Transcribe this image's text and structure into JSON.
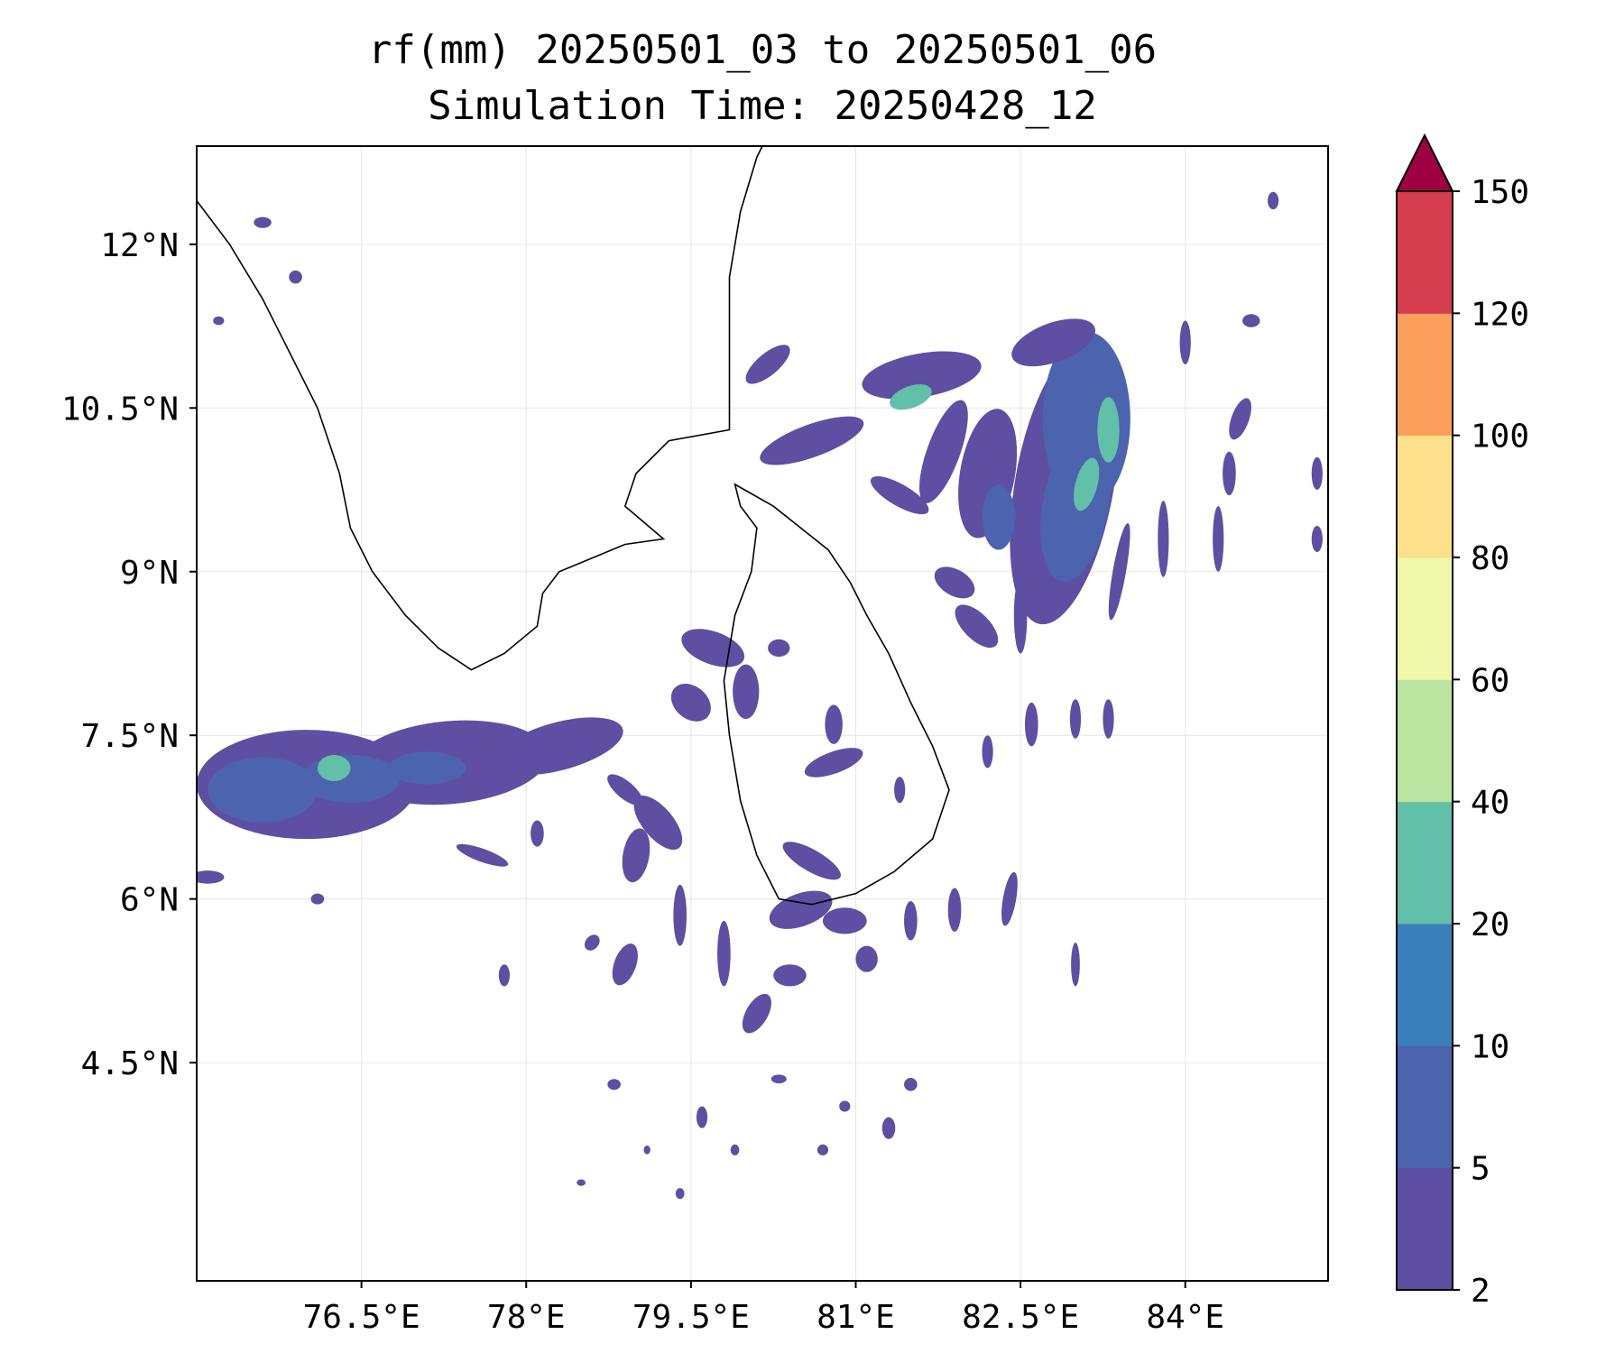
{
  "title": "rf(mm) 20250501_03 to 20250501_06",
  "subtitle": "Simulation Time: 20250428_12",
  "map": {
    "extent": {
      "lon_min": 75.0,
      "lon_max": 85.3,
      "lat_min": 2.5,
      "lat_max": 12.9
    },
    "lon_ticks": [
      {
        "value": 76.5,
        "label": "76.5°E"
      },
      {
        "value": 78.0,
        "label": "78°E"
      },
      {
        "value": 79.5,
        "label": "79.5°E"
      },
      {
        "value": 81.0,
        "label": "81°E"
      },
      {
        "value": 82.5,
        "label": "82.5°E"
      },
      {
        "value": 84.0,
        "label": "84°E"
      }
    ],
    "lat_ticks": [
      {
        "value": 12.0,
        "label": "12°N"
      },
      {
        "value": 10.5,
        "label": "10.5°N"
      },
      {
        "value": 9.0,
        "label": "9°N"
      },
      {
        "value": 7.5,
        "label": "7.5°N"
      },
      {
        "value": 6.0,
        "label": "6°N"
      },
      {
        "value": 4.5,
        "label": "4.5°N"
      }
    ],
    "gridlines": true,
    "coastline_color": "#000000",
    "india_coast": [
      [
        75.0,
        12.4
      ],
      [
        75.3,
        12.0
      ],
      [
        75.6,
        11.5
      ],
      [
        75.8,
        11.1
      ],
      [
        76.1,
        10.5
      ],
      [
        76.3,
        9.9
      ],
      [
        76.4,
        9.4
      ],
      [
        76.6,
        9.0
      ],
      [
        76.9,
        8.6
      ],
      [
        77.2,
        8.3
      ],
      [
        77.5,
        8.1
      ],
      [
        77.8,
        8.25
      ],
      [
        78.1,
        8.5
      ],
      [
        78.15,
        8.8
      ],
      [
        78.3,
        9.0
      ],
      [
        78.9,
        9.25
      ],
      [
        79.25,
        9.3
      ],
      [
        78.9,
        9.6
      ],
      [
        79.0,
        9.9
      ],
      [
        79.3,
        10.2
      ],
      [
        79.85,
        10.3
      ],
      [
        79.85,
        10.9
      ],
      [
        79.85,
        11.7
      ],
      [
        79.95,
        12.3
      ],
      [
        80.1,
        12.8
      ],
      [
        80.15,
        12.9
      ]
    ],
    "srilanka_coast": [
      [
        79.9,
        9.8
      ],
      [
        80.25,
        9.6
      ],
      [
        80.5,
        9.4
      ],
      [
        80.75,
        9.2
      ],
      [
        80.95,
        8.9
      ],
      [
        81.1,
        8.6
      ],
      [
        81.3,
        8.25
      ],
      [
        81.5,
        7.8
      ],
      [
        81.7,
        7.4
      ],
      [
        81.85,
        7.0
      ],
      [
        81.7,
        6.55
      ],
      [
        81.35,
        6.25
      ],
      [
        81.0,
        6.05
      ],
      [
        80.6,
        5.95
      ],
      [
        80.3,
        6.0
      ],
      [
        80.1,
        6.4
      ],
      [
        79.95,
        6.9
      ],
      [
        79.85,
        7.5
      ],
      [
        79.8,
        8.0
      ],
      [
        79.9,
        8.6
      ],
      [
        80.05,
        9.0
      ],
      [
        80.1,
        9.4
      ],
      [
        79.95,
        9.6
      ],
      [
        79.9,
        9.8
      ]
    ]
  },
  "colorbar": {
    "levels": [
      2,
      5,
      10,
      20,
      40,
      60,
      80,
      100,
      120,
      150
    ],
    "tick_labels": [
      "2",
      "5",
      "10",
      "20",
      "40",
      "60",
      "80",
      "100",
      "120",
      "150"
    ],
    "colors": [
      "#5e4fa2",
      "#4c63ad",
      "#3a7fbb",
      "#62bfa8",
      "#bce4a1",
      "#eff8aa",
      "#fde08b",
      "#fba05c",
      "#d53e4f"
    ],
    "extend_color": "#9e0142",
    "extend": "max"
  },
  "rain_blobs": [
    {
      "lon": 76.0,
      "lat": 7.05,
      "rx": 1.0,
      "ry": 0.5,
      "rot": 0,
      "level": 0
    },
    {
      "lon": 77.3,
      "lat": 7.25,
      "rx": 0.9,
      "ry": 0.38,
      "rot": -5,
      "level": 0
    },
    {
      "lon": 78.3,
      "lat": 7.4,
      "rx": 0.6,
      "ry": 0.22,
      "rot": -15,
      "level": 0
    },
    {
      "lon": 75.6,
      "lat": 7.0,
      "rx": 0.5,
      "ry": 0.3,
      "rot": 0,
      "level": 1
    },
    {
      "lon": 76.4,
      "lat": 7.1,
      "rx": 0.45,
      "ry": 0.22,
      "rot": 0,
      "level": 1
    },
    {
      "lon": 77.1,
      "lat": 7.2,
      "rx": 0.35,
      "ry": 0.15,
      "rot": 0,
      "level": 1
    },
    {
      "lon": 76.25,
      "lat": 7.2,
      "rx": 0.15,
      "ry": 0.12,
      "rot": 0,
      "level": 3
    },
    {
      "lon": 82.9,
      "lat": 9.8,
      "rx": 0.45,
      "ry": 1.3,
      "rot": 10,
      "level": 0
    },
    {
      "lon": 83.1,
      "lat": 10.4,
      "rx": 0.4,
      "ry": 0.8,
      "rot": 0,
      "level": 1
    },
    {
      "lon": 83.0,
      "lat": 9.6,
      "rx": 0.3,
      "ry": 0.7,
      "rot": 10,
      "level": 1
    },
    {
      "lon": 83.3,
      "lat": 10.3,
      "rx": 0.1,
      "ry": 0.3,
      "rot": 0,
      "level": 3
    },
    {
      "lon": 83.1,
      "lat": 9.8,
      "rx": 0.1,
      "ry": 0.25,
      "rot": 15,
      "level": 3
    },
    {
      "lon": 82.8,
      "lat": 11.1,
      "rx": 0.4,
      "ry": 0.18,
      "rot": -20,
      "level": 0
    },
    {
      "lon": 81.6,
      "lat": 10.8,
      "rx": 0.55,
      "ry": 0.2,
      "rot": -10,
      "level": 0
    },
    {
      "lon": 81.5,
      "lat": 10.6,
      "rx": 0.2,
      "ry": 0.1,
      "rot": -20,
      "level": 3
    },
    {
      "lon": 80.6,
      "lat": 10.2,
      "rx": 0.5,
      "ry": 0.15,
      "rot": -20,
      "level": 0
    },
    {
      "lon": 80.2,
      "lat": 10.9,
      "rx": 0.25,
      "ry": 0.1,
      "rot": -40,
      "level": 0
    },
    {
      "lon": 82.2,
      "lat": 9.9,
      "rx": 0.25,
      "ry": 0.6,
      "rot": 10,
      "level": 0
    },
    {
      "lon": 82.3,
      "lat": 9.5,
      "rx": 0.15,
      "ry": 0.3,
      "rot": 0,
      "level": 1
    },
    {
      "lon": 81.8,
      "lat": 10.1,
      "rx": 0.15,
      "ry": 0.5,
      "rot": 20,
      "level": 0
    },
    {
      "lon": 81.4,
      "lat": 9.7,
      "rx": 0.3,
      "ry": 0.1,
      "rot": 30,
      "level": 0
    },
    {
      "lon": 82.1,
      "lat": 8.5,
      "rx": 0.25,
      "ry": 0.12,
      "rot": 45,
      "level": 0
    },
    {
      "lon": 81.9,
      "lat": 8.9,
      "rx": 0.2,
      "ry": 0.12,
      "rot": 30,
      "level": 0
    },
    {
      "lon": 82.5,
      "lat": 8.6,
      "rx": 0.06,
      "ry": 0.35,
      "rot": 0,
      "level": 0
    },
    {
      "lon": 83.4,
      "lat": 9.0,
      "rx": 0.06,
      "ry": 0.45,
      "rot": 10,
      "level": 0
    },
    {
      "lon": 83.8,
      "lat": 9.3,
      "rx": 0.05,
      "ry": 0.35,
      "rot": 0,
      "level": 0
    },
    {
      "lon": 84.3,
      "lat": 9.3,
      "rx": 0.05,
      "ry": 0.3,
      "rot": 0,
      "level": 0
    },
    {
      "lon": 84.5,
      "lat": 10.4,
      "rx": 0.08,
      "ry": 0.2,
      "rot": 20,
      "level": 0
    },
    {
      "lon": 84.4,
      "lat": 9.9,
      "rx": 0.06,
      "ry": 0.2,
      "rot": 0,
      "level": 0
    },
    {
      "lon": 84.6,
      "lat": 11.3,
      "rx": 0.08,
      "ry": 0.06,
      "rot": 0,
      "level": 0
    },
    {
      "lon": 84.0,
      "lat": 11.1,
      "rx": 0.05,
      "ry": 0.2,
      "rot": 0,
      "level": 0
    },
    {
      "lon": 85.2,
      "lat": 9.9,
      "rx": 0.05,
      "ry": 0.15,
      "rot": 0,
      "level": 0
    },
    {
      "lon": 85.2,
      "lat": 9.3,
      "rx": 0.05,
      "ry": 0.12,
      "rot": 0,
      "level": 0
    },
    {
      "lon": 84.8,
      "lat": 12.4,
      "rx": 0.05,
      "ry": 0.08,
      "rot": 0,
      "level": 0
    },
    {
      "lon": 82.6,
      "lat": 7.6,
      "rx": 0.06,
      "ry": 0.2,
      "rot": 0,
      "level": 0
    },
    {
      "lon": 83.0,
      "lat": 7.65,
      "rx": 0.05,
      "ry": 0.18,
      "rot": 0,
      "level": 0
    },
    {
      "lon": 83.3,
      "lat": 7.65,
      "rx": 0.05,
      "ry": 0.18,
      "rot": 0,
      "level": 0
    },
    {
      "lon": 82.2,
      "lat": 7.35,
      "rx": 0.05,
      "ry": 0.15,
      "rot": 0,
      "level": 0
    },
    {
      "lon": 81.4,
      "lat": 7.0,
      "rx": 0.05,
      "ry": 0.12,
      "rot": 0,
      "level": 0
    },
    {
      "lon": 80.8,
      "lat": 7.25,
      "rx": 0.28,
      "ry": 0.1,
      "rot": -20,
      "level": 0
    },
    {
      "lon": 80.8,
      "lat": 7.6,
      "rx": 0.08,
      "ry": 0.18,
      "rot": 0,
      "level": 0
    },
    {
      "lon": 80.6,
      "lat": 6.35,
      "rx": 0.3,
      "ry": 0.1,
      "rot": 30,
      "level": 0
    },
    {
      "lon": 80.5,
      "lat": 5.9,
      "rx": 0.3,
      "ry": 0.15,
      "rot": -20,
      "level": 0
    },
    {
      "lon": 80.9,
      "lat": 5.8,
      "rx": 0.2,
      "ry": 0.12,
      "rot": 0,
      "level": 0
    },
    {
      "lon": 79.7,
      "lat": 8.3,
      "rx": 0.3,
      "ry": 0.15,
      "rot": 20,
      "level": 0
    },
    {
      "lon": 79.5,
      "lat": 7.8,
      "rx": 0.2,
      "ry": 0.15,
      "rot": 40,
      "level": 0
    },
    {
      "lon": 79.2,
      "lat": 6.7,
      "rx": 0.3,
      "ry": 0.14,
      "rot": 50,
      "level": 0
    },
    {
      "lon": 78.9,
      "lat": 7.0,
      "rx": 0.2,
      "ry": 0.08,
      "rot": 40,
      "level": 0
    },
    {
      "lon": 79.0,
      "lat": 6.4,
      "rx": 0.12,
      "ry": 0.25,
      "rot": 10,
      "level": 0
    },
    {
      "lon": 79.4,
      "lat": 5.85,
      "rx": 0.06,
      "ry": 0.28,
      "rot": 0,
      "level": 0
    },
    {
      "lon": 79.8,
      "lat": 5.5,
      "rx": 0.06,
      "ry": 0.3,
      "rot": 0,
      "level": 0
    },
    {
      "lon": 80.1,
      "lat": 4.95,
      "rx": 0.1,
      "ry": 0.2,
      "rot": 30,
      "level": 0
    },
    {
      "lon": 78.9,
      "lat": 5.4,
      "rx": 0.1,
      "ry": 0.2,
      "rot": 20,
      "level": 0
    },
    {
      "lon": 80.4,
      "lat": 5.3,
      "rx": 0.15,
      "ry": 0.1,
      "rot": 0,
      "level": 0
    },
    {
      "lon": 81.1,
      "lat": 5.45,
      "rx": 0.1,
      "ry": 0.12,
      "rot": 0,
      "level": 0
    },
    {
      "lon": 81.5,
      "lat": 5.8,
      "rx": 0.06,
      "ry": 0.18,
      "rot": 0,
      "level": 0
    },
    {
      "lon": 81.9,
      "lat": 5.9,
      "rx": 0.06,
      "ry": 0.2,
      "rot": 0,
      "level": 0
    },
    {
      "lon": 82.4,
      "lat": 6.0,
      "rx": 0.06,
      "ry": 0.25,
      "rot": 10,
      "level": 0
    },
    {
      "lon": 83.0,
      "lat": 5.4,
      "rx": 0.04,
      "ry": 0.2,
      "rot": 0,
      "level": 0
    },
    {
      "lon": 75.9,
      "lat": 11.7,
      "rx": 0.06,
      "ry": 0.06,
      "rot": 0,
      "level": 0
    },
    {
      "lon": 75.6,
      "lat": 12.2,
      "rx": 0.08,
      "ry": 0.05,
      "rot": 0,
      "level": 0
    },
    {
      "lon": 75.2,
      "lat": 11.3,
      "rx": 0.05,
      "ry": 0.04,
      "rot": 0,
      "level": 0
    },
    {
      "lon": 75.1,
      "lat": 6.2,
      "rx": 0.15,
      "ry": 0.06,
      "rot": 0,
      "level": 0
    },
    {
      "lon": 76.1,
      "lat": 6.0,
      "rx": 0.06,
      "ry": 0.05,
      "rot": 0,
      "level": 0
    },
    {
      "lon": 77.6,
      "lat": 6.4,
      "rx": 0.25,
      "ry": 0.06,
      "rot": 20,
      "level": 0
    },
    {
      "lon": 78.1,
      "lat": 6.6,
      "rx": 0.06,
      "ry": 0.12,
      "rot": 0,
      "level": 0
    },
    {
      "lon": 77.8,
      "lat": 5.3,
      "rx": 0.05,
      "ry": 0.1,
      "rot": 0,
      "level": 0
    },
    {
      "lon": 78.6,
      "lat": 5.6,
      "rx": 0.06,
      "ry": 0.08,
      "rot": 40,
      "level": 0
    },
    {
      "lon": 78.8,
      "lat": 4.3,
      "rx": 0.06,
      "ry": 0.05,
      "rot": 0,
      "level": 0
    },
    {
      "lon": 79.6,
      "lat": 4.0,
      "rx": 0.05,
      "ry": 0.1,
      "rot": 0,
      "level": 0
    },
    {
      "lon": 80.3,
      "lat": 4.35,
      "rx": 0.07,
      "ry": 0.04,
      "rot": 0,
      "level": 0
    },
    {
      "lon": 80.9,
      "lat": 4.1,
      "rx": 0.05,
      "ry": 0.05,
      "rot": 0,
      "level": 0
    },
    {
      "lon": 81.3,
      "lat": 3.9,
      "rx": 0.06,
      "ry": 0.1,
      "rot": 0,
      "level": 0
    },
    {
      "lon": 81.5,
      "lat": 4.3,
      "rx": 0.06,
      "ry": 0.06,
      "rot": 0,
      "level": 0
    },
    {
      "lon": 80.7,
      "lat": 3.7,
      "rx": 0.05,
      "ry": 0.05,
      "rot": 0,
      "level": 0
    },
    {
      "lon": 79.9,
      "lat": 3.7,
      "rx": 0.04,
      "ry": 0.05,
      "rot": 0,
      "level": 0
    },
    {
      "lon": 79.4,
      "lat": 3.3,
      "rx": 0.04,
      "ry": 0.05,
      "rot": 0,
      "level": 0
    },
    {
      "lon": 78.5,
      "lat": 3.4,
      "rx": 0.04,
      "ry": 0.03,
      "rot": 0,
      "level": 0
    },
    {
      "lon": 79.1,
      "lat": 3.7,
      "rx": 0.03,
      "ry": 0.04,
      "rot": 0,
      "level": 0
    },
    {
      "lon": 80.0,
      "lat": 7.9,
      "rx": 0.12,
      "ry": 0.25,
      "rot": 0,
      "level": 0
    },
    {
      "lon": 80.3,
      "lat": 8.3,
      "rx": 0.1,
      "ry": 0.08,
      "rot": 0,
      "level": 0
    }
  ]
}
